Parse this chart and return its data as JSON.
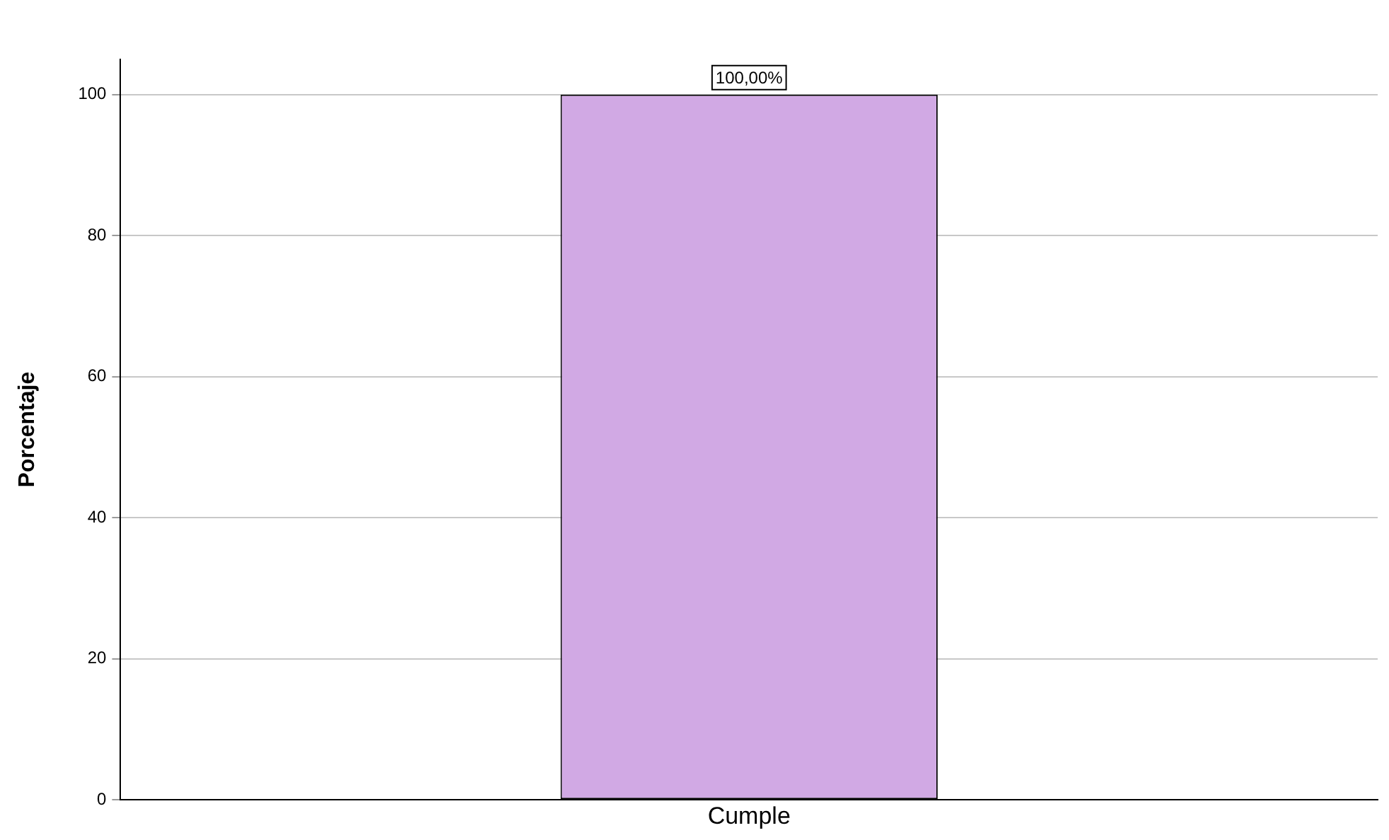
{
  "chart_data": {
    "type": "bar",
    "ylabel": "Porcentaje",
    "categories": [
      "Cumple"
    ],
    "values": [
      100
    ],
    "color": "#d1a9e4",
    "ylim": [
      0,
      105
    ],
    "yticks": [
      0,
      20,
      40,
      60,
      80,
      100
    ],
    "grid": "y",
    "value_labels": [
      "100,00%"
    ]
  }
}
